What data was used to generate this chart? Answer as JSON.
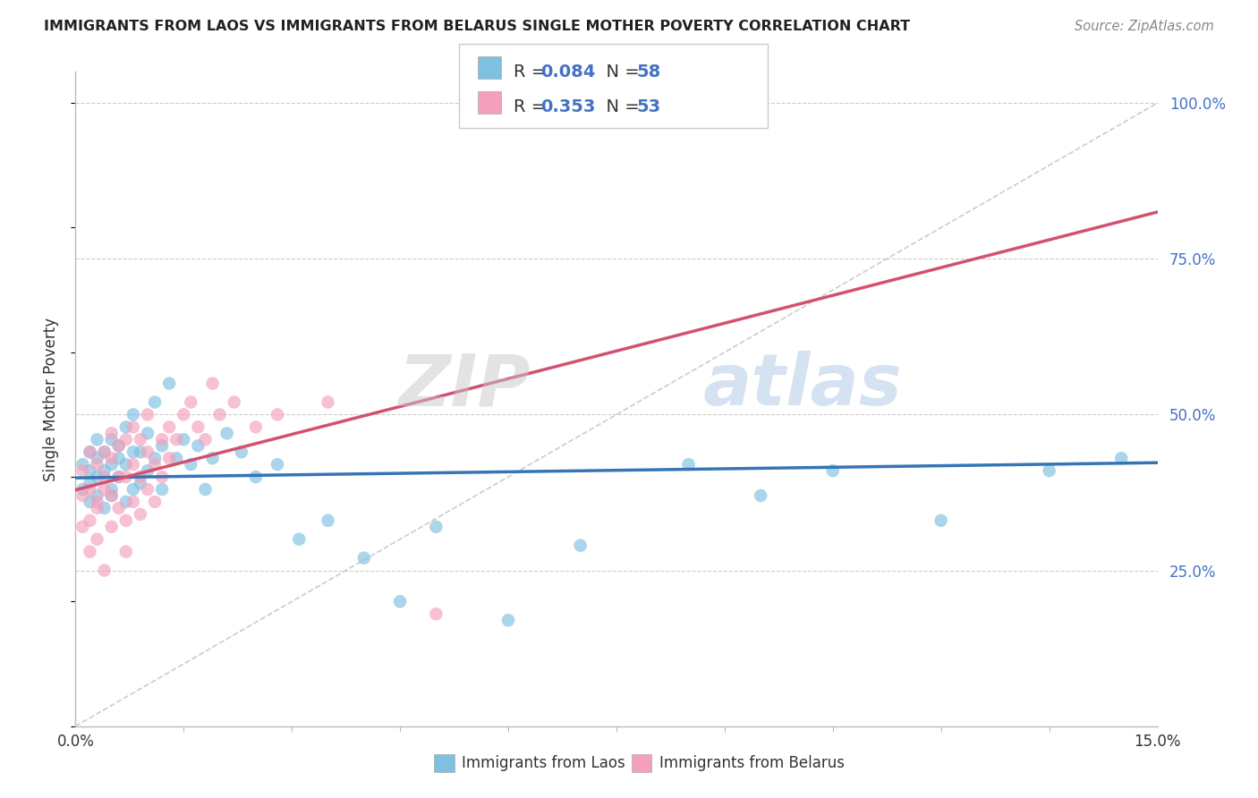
{
  "title": "IMMIGRANTS FROM LAOS VS IMMIGRANTS FROM BELARUS SINGLE MOTHER POVERTY CORRELATION CHART",
  "source": "Source: ZipAtlas.com",
  "ylabel": "Single Mother Poverty",
  "y_ticks": [
    0.25,
    0.5,
    0.75,
    1.0
  ],
  "y_tick_labels": [
    "25.0%",
    "50.0%",
    "75.0%",
    "100.0%"
  ],
  "x_ticks": [
    0.0,
    0.15
  ],
  "x_tick_labels": [
    "0.0%",
    "15.0%"
  ],
  "xlim": [
    0.0,
    0.15
  ],
  "ylim": [
    0.0,
    1.05
  ],
  "laos_color": "#7fbfdf",
  "belarus_color": "#f4a0bc",
  "laos_line_color": "#3575b5",
  "belarus_line_color": "#d45070",
  "diagonal_color": "#cccccc",
  "R_laos": 0.084,
  "N_laos": 58,
  "R_belarus": 0.353,
  "N_belarus": 53,
  "watermark_zip": "ZIP",
  "watermark_atlas": "atlas",
  "laos_x": [
    0.001,
    0.001,
    0.002,
    0.002,
    0.002,
    0.002,
    0.003,
    0.003,
    0.003,
    0.003,
    0.004,
    0.004,
    0.004,
    0.005,
    0.005,
    0.005,
    0.005,
    0.006,
    0.006,
    0.006,
    0.007,
    0.007,
    0.007,
    0.008,
    0.008,
    0.008,
    0.009,
    0.009,
    0.01,
    0.01,
    0.011,
    0.011,
    0.012,
    0.012,
    0.013,
    0.014,
    0.015,
    0.016,
    0.017,
    0.018,
    0.019,
    0.021,
    0.023,
    0.025,
    0.028,
    0.031,
    0.035,
    0.04,
    0.045,
    0.05,
    0.06,
    0.07,
    0.085,
    0.095,
    0.105,
    0.12,
    0.135,
    0.145
  ],
  "laos_y": [
    0.38,
    0.42,
    0.36,
    0.41,
    0.44,
    0.39,
    0.37,
    0.43,
    0.46,
    0.4,
    0.35,
    0.44,
    0.41,
    0.38,
    0.46,
    0.42,
    0.37,
    0.4,
    0.45,
    0.43,
    0.36,
    0.48,
    0.42,
    0.44,
    0.38,
    0.5,
    0.39,
    0.44,
    0.47,
    0.41,
    0.52,
    0.43,
    0.38,
    0.45,
    0.55,
    0.43,
    0.46,
    0.42,
    0.45,
    0.38,
    0.43,
    0.47,
    0.44,
    0.4,
    0.42,
    0.3,
    0.33,
    0.27,
    0.2,
    0.32,
    0.17,
    0.29,
    0.42,
    0.37,
    0.41,
    0.33,
    0.41,
    0.43
  ],
  "belarus_x": [
    0.001,
    0.001,
    0.001,
    0.002,
    0.002,
    0.002,
    0.002,
    0.003,
    0.003,
    0.003,
    0.003,
    0.004,
    0.004,
    0.004,
    0.004,
    0.005,
    0.005,
    0.005,
    0.005,
    0.006,
    0.006,
    0.006,
    0.007,
    0.007,
    0.007,
    0.007,
    0.008,
    0.008,
    0.008,
    0.009,
    0.009,
    0.009,
    0.01,
    0.01,
    0.01,
    0.011,
    0.011,
    0.012,
    0.012,
    0.013,
    0.013,
    0.014,
    0.015,
    0.016,
    0.017,
    0.018,
    0.019,
    0.02,
    0.022,
    0.025,
    0.028,
    0.035,
    0.05
  ],
  "belarus_y": [
    0.32,
    0.37,
    0.41,
    0.28,
    0.33,
    0.38,
    0.44,
    0.3,
    0.36,
    0.42,
    0.35,
    0.25,
    0.4,
    0.44,
    0.38,
    0.32,
    0.37,
    0.43,
    0.47,
    0.35,
    0.4,
    0.45,
    0.28,
    0.33,
    0.4,
    0.46,
    0.36,
    0.42,
    0.48,
    0.34,
    0.4,
    0.46,
    0.38,
    0.44,
    0.5,
    0.36,
    0.42,
    0.4,
    0.46,
    0.43,
    0.48,
    0.46,
    0.5,
    0.52,
    0.48,
    0.46,
    0.55,
    0.5,
    0.52,
    0.48,
    0.5,
    0.52,
    0.18
  ],
  "legend_label_laos": "Immigrants from Laos",
  "legend_label_belarus": "Immigrants from Belarus"
}
